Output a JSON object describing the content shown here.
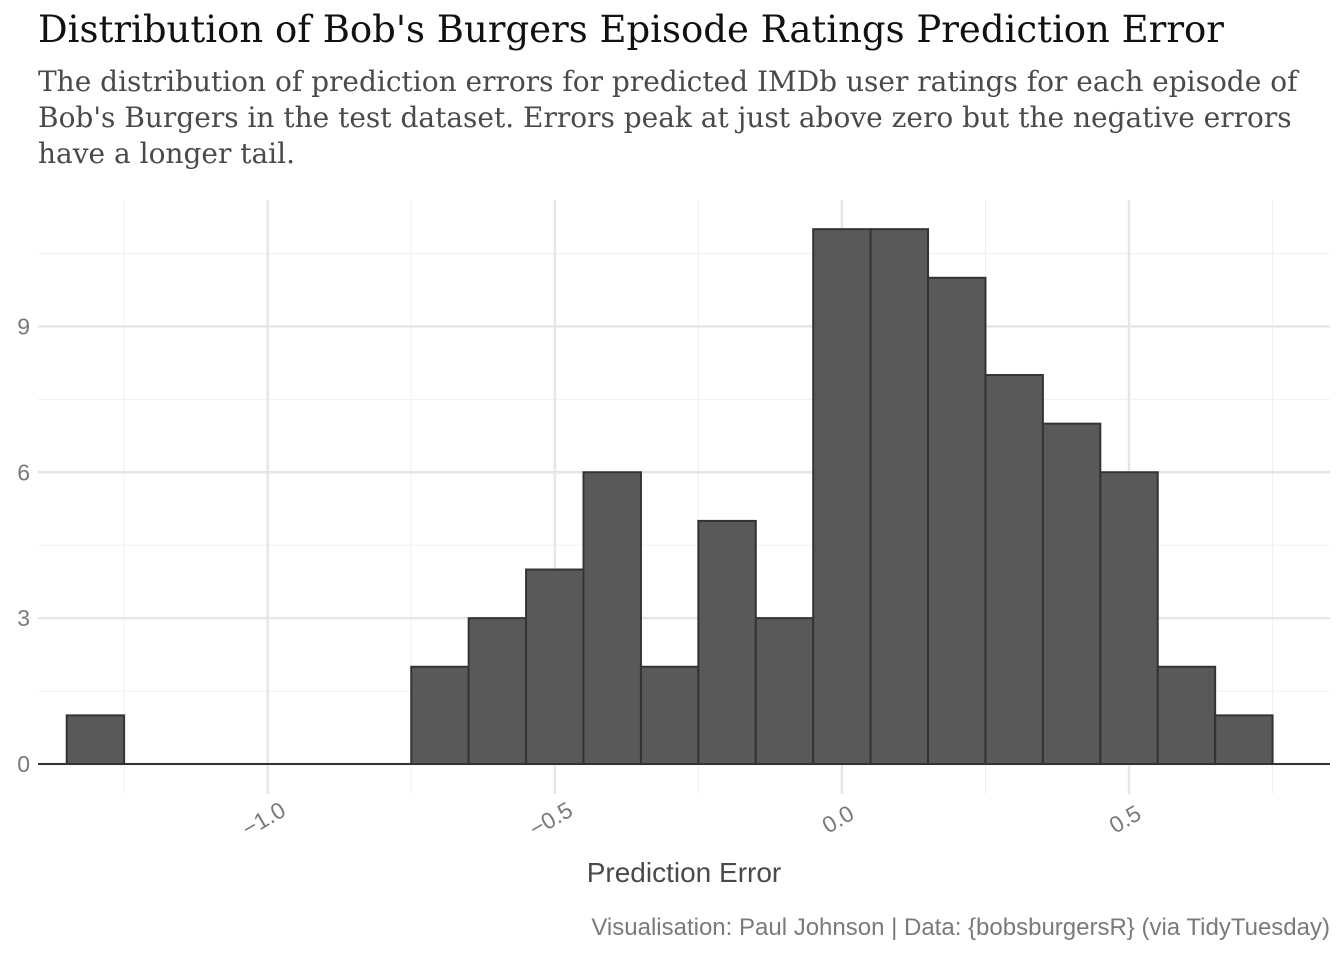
{
  "header": {
    "title": "Distribution of Bob's Burgers Episode Ratings Prediction Error",
    "subtitle": "The distribution of prediction errors for predicted IMDb user ratings for each episode of Bob's Burgers in the test dataset. Errors peak at just above zero but the negative errors have a longer tail."
  },
  "footer": {
    "caption": "Visualisation: Paul Johnson | Data: {bobsburgersR} (via TidyTuesday)"
  },
  "chart_data": {
    "type": "bar",
    "title": "Distribution of Bob's Burgers Episode Ratings Prediction Error",
    "xlabel": "Prediction Error",
    "ylabel": "",
    "bin_width": 0.1,
    "bin_centers": [
      -1.3,
      -1.2,
      -1.1,
      -1.0,
      -0.9,
      -0.8,
      -0.7,
      -0.6,
      -0.5,
      -0.4,
      -0.3,
      -0.2,
      -0.1,
      0.0,
      0.1,
      0.2,
      0.3,
      0.4,
      0.5,
      0.6,
      0.7
    ],
    "values": [
      1,
      0,
      0,
      0,
      0,
      0,
      2,
      3,
      4,
      6,
      2,
      5,
      3,
      11,
      11,
      10,
      8,
      7,
      6,
      2,
      1
    ],
    "xlim": [
      -1.4,
      0.85
    ],
    "ylim": [
      0,
      11.6
    ],
    "x_ticks": [
      -1.0,
      -0.5,
      0.0,
      0.5
    ],
    "x_tick_labels": [
      "-1.0",
      "-0.5",
      "0.0",
      "0.5"
    ],
    "y_ticks": [
      0,
      3,
      6,
      9
    ],
    "y_tick_labels": [
      "0",
      "3",
      "6",
      "9"
    ],
    "grid": true,
    "bar_fill": "#595959",
    "bar_stroke": "#333333",
    "grid_color": "#e6e6e6"
  }
}
